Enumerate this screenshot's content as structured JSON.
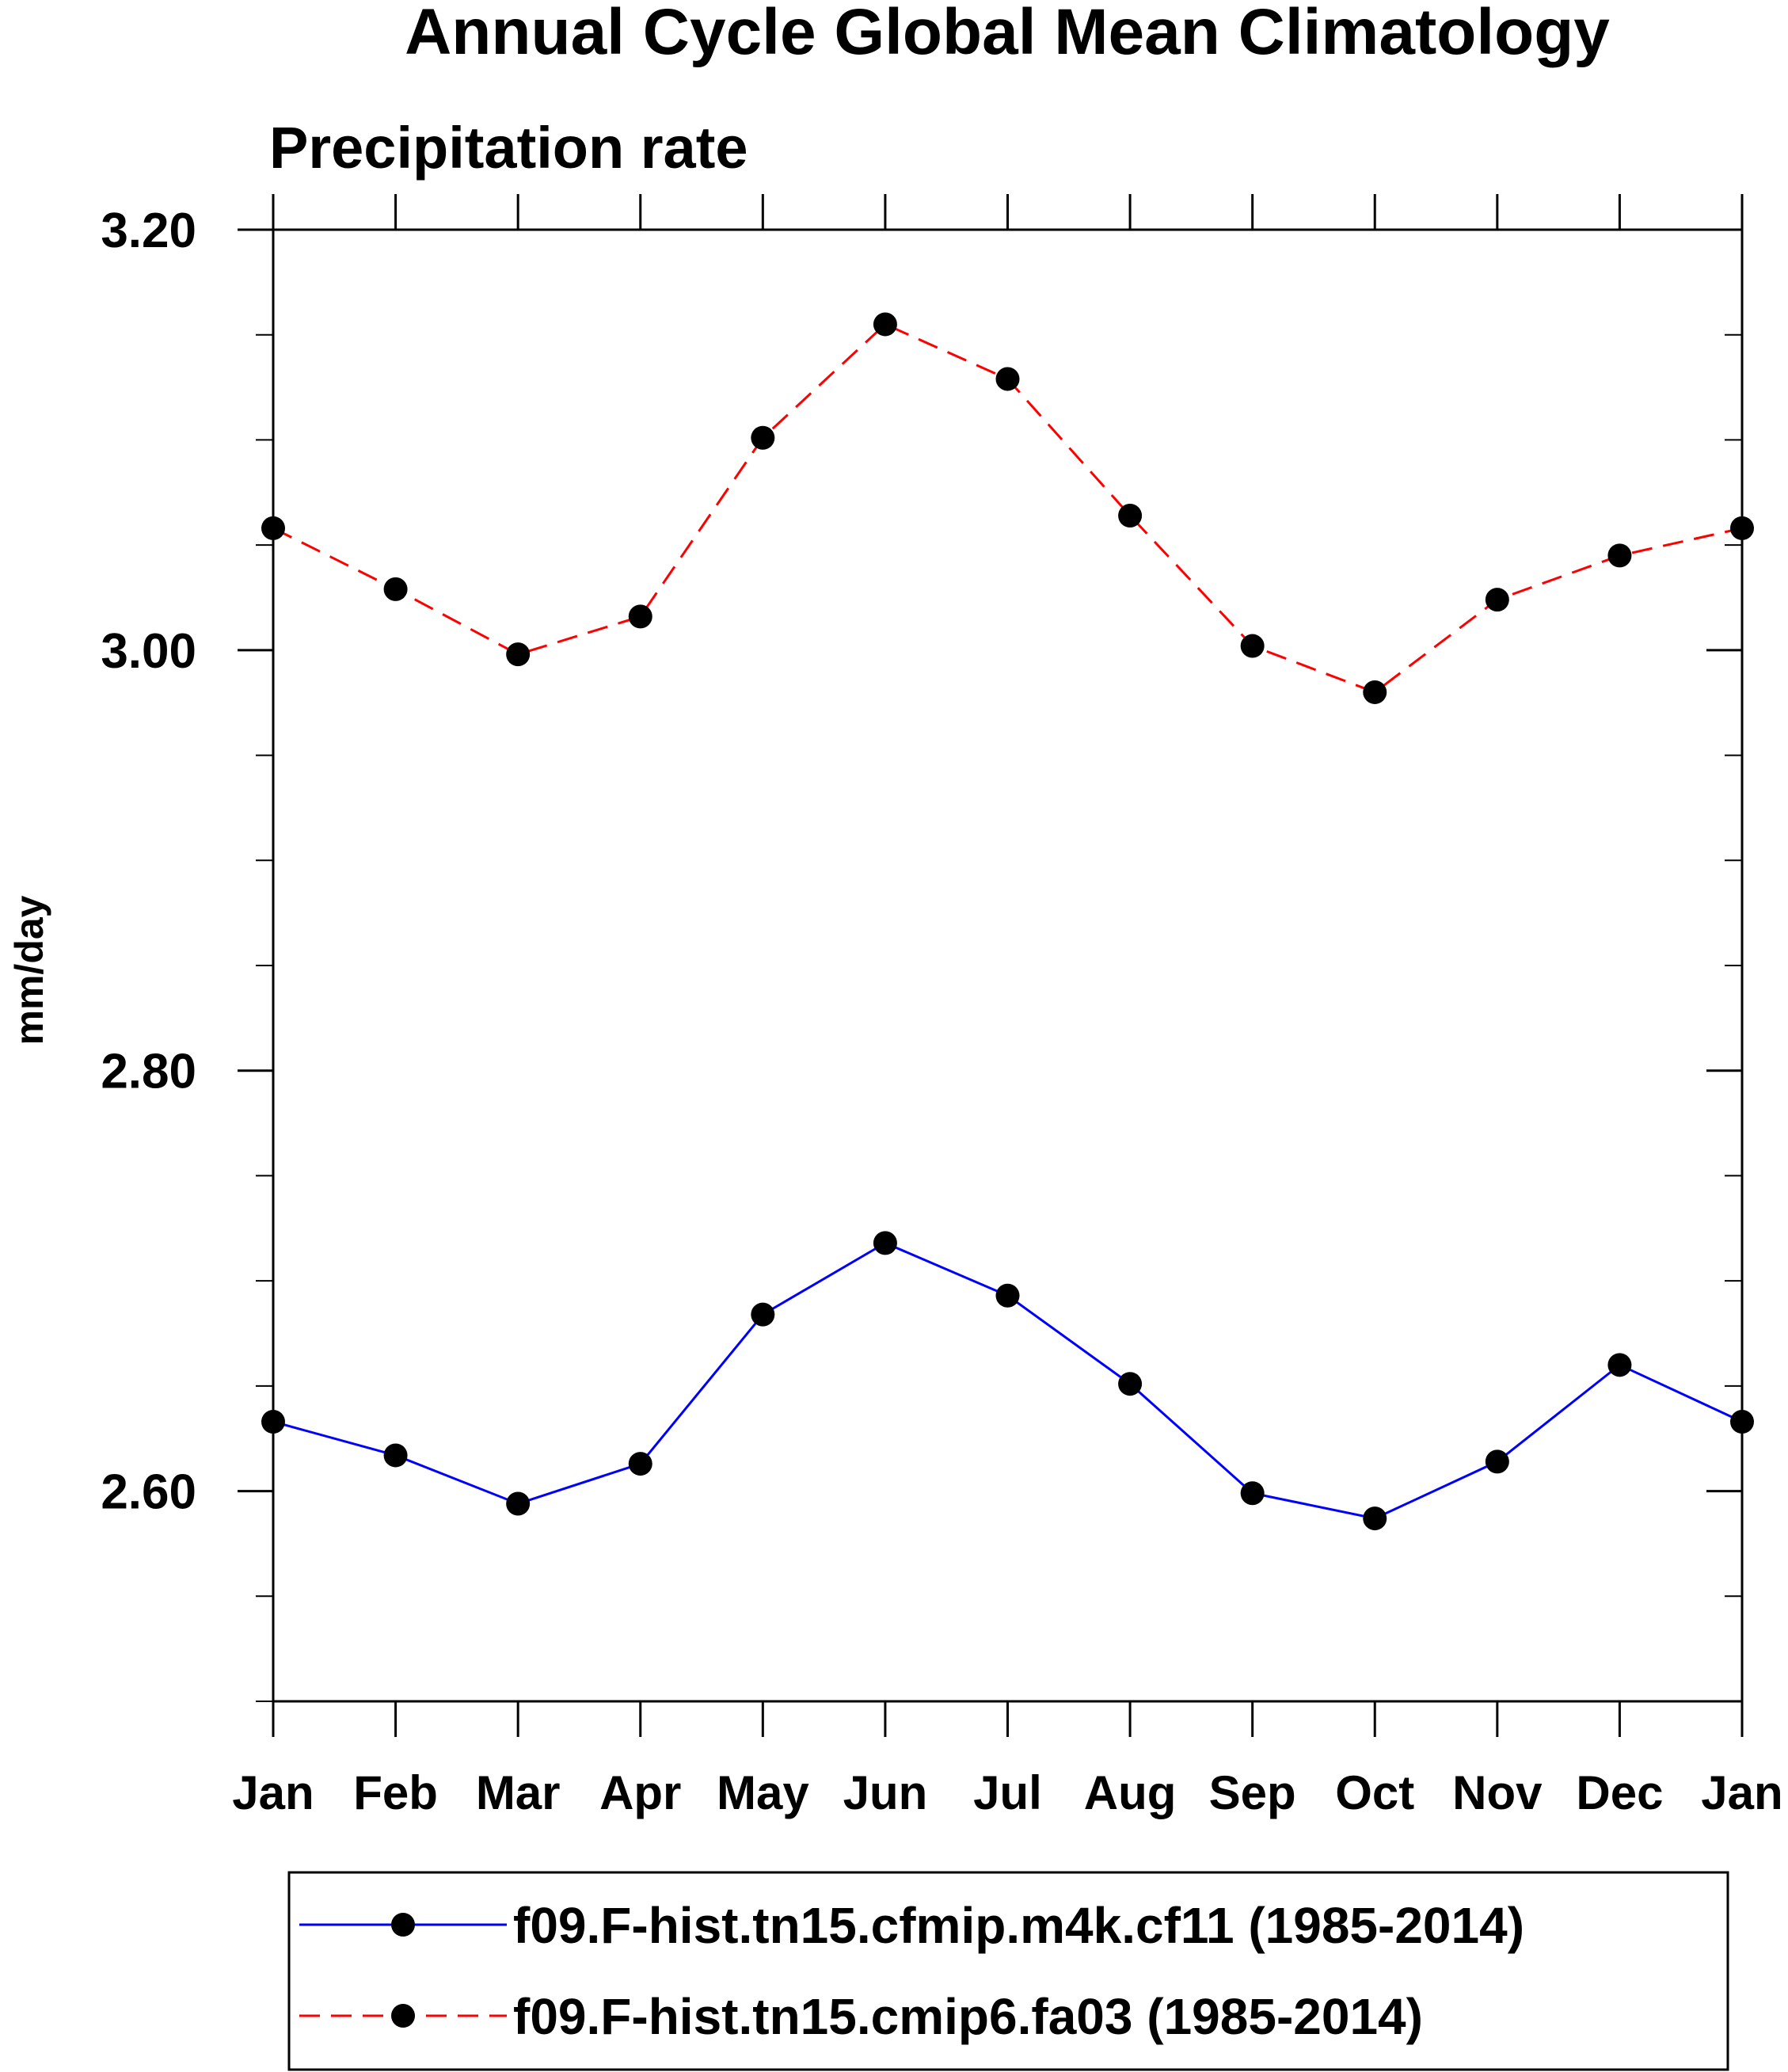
{
  "chart_data": {
    "type": "line",
    "title": "Annual Cycle Global Mean Climatology",
    "subtitle": "Precipitation rate",
    "xlabel": "",
    "ylabel": "mm/day",
    "categories": [
      "Jan",
      "Feb",
      "Mar",
      "Apr",
      "May",
      "Jun",
      "Jul",
      "Aug",
      "Sep",
      "Oct",
      "Nov",
      "Dec",
      "Jan"
    ],
    "ylim": [
      2.5,
      3.2
    ],
    "yticks": [
      2.6,
      2.8,
      3.0,
      3.2
    ],
    "ytick_labels": [
      "2.60",
      "2.80",
      "3.00",
      "3.20"
    ],
    "yminor_step": 0.05,
    "grid": false,
    "legend_position": "bottom",
    "series": [
      {
        "name": "f09.F-hist.tn15.cfmip.m4k.cf11 (1985-2014)",
        "color": "#0000ff",
        "line_style": "solid",
        "marker": "filled-circle",
        "values": [
          2.633,
          2.617,
          2.594,
          2.613,
          2.684,
          2.718,
          2.693,
          2.651,
          2.599,
          2.587,
          2.614,
          2.66,
          2.633
        ]
      },
      {
        "name": "f09.F-hist.tn15.cmip6.fa03 (1985-2014)",
        "color": "#ff0000",
        "line_style": "dashed",
        "marker": "filled-circle",
        "values": [
          3.058,
          3.029,
          2.998,
          3.016,
          3.101,
          3.155,
          3.129,
          3.064,
          3.002,
          2.98,
          3.024,
          3.045,
          3.058
        ]
      }
    ]
  }
}
